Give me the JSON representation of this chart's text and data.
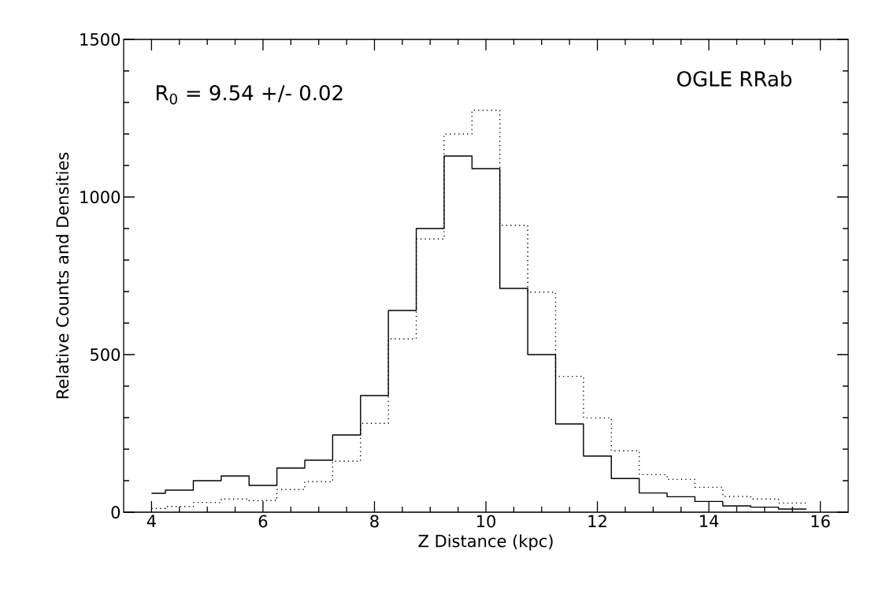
{
  "chart_data": {
    "type": "histogram",
    "xlabel": "Z Distance (kpc)",
    "ylabel": "Relative Counts and Densities",
    "annotations": [
      "R$_{0}$ = 9.54 +/- 0.02",
      "OGLE RRab"
    ],
    "bins": [
      4.0,
      4.25,
      4.75,
      5.25,
      5.75,
      6.25,
      6.75,
      7.25,
      7.75,
      8.25,
      8.75,
      9.25,
      9.75,
      10.25,
      10.75,
      11.25,
      11.75,
      12.25,
      12.75,
      13.25,
      13.75,
      14.25,
      14.75,
      15.25,
      15.75
    ],
    "series": [
      {
        "color": "#000000",
        "line_style": "solid",
        "values": [
          60,
          70,
          100,
          115,
          85,
          140,
          165,
          245,
          370,
          640,
          900,
          1130,
          1090,
          710,
          500,
          280,
          178,
          107,
          61,
          49,
          34,
          20,
          16,
          10
        ]
      },
      {
        "color": "#000000",
        "line_style": "dotted",
        "values": [
          12,
          18,
          31,
          42,
          37,
          72,
          97,
          162,
          282,
          550,
          867,
          1200,
          1275,
          910,
          698,
          431,
          299,
          195,
          119,
          104,
          79,
          50,
          42,
          29
        ]
      }
    ],
    "xlim": [
      3.5,
      16.5
    ],
    "xticks": [
      4,
      6,
      8,
      10,
      12,
      14,
      16
    ],
    "ylim": [
      0,
      1500
    ],
    "yticks": [
      0,
      500,
      1000,
      1500
    ],
    "grid": false
  }
}
